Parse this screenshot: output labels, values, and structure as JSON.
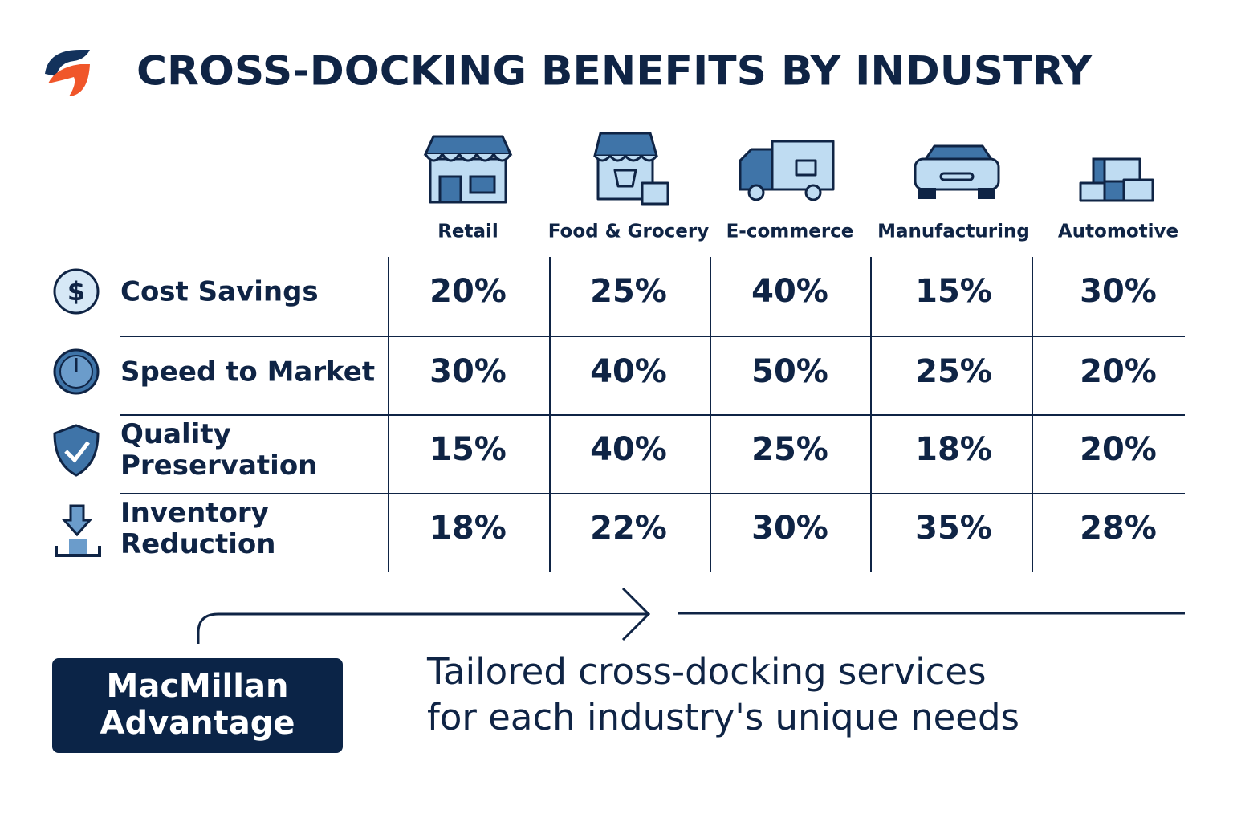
{
  "header": {
    "title": "CROSS-DOCKING BENEFITS BY INDUSTRY"
  },
  "table": {
    "columns": [
      "Retail",
      "Food & Grocery",
      "E-commerce",
      "Manufacturing",
      "Automotive"
    ],
    "rows": [
      {
        "label": [
          "Cost Savings"
        ],
        "cells": [
          "20%",
          "25%",
          "40%",
          "15%",
          "30%"
        ]
      },
      {
        "label": [
          "Speed to Market"
        ],
        "cells": [
          "30%",
          "40%",
          "50%",
          "25%",
          "20%"
        ]
      },
      {
        "label": [
          "Quality",
          "Preservation"
        ],
        "cells": [
          "15%",
          "40%",
          "25%",
          "18%",
          "20%"
        ]
      },
      {
        "label": [
          "Inventory",
          "Reduction"
        ],
        "cells": [
          "18%",
          "22%",
          "30%",
          "35%",
          "28%"
        ]
      }
    ]
  },
  "callout": {
    "badge": [
      "MacMillan",
      "Advantage"
    ],
    "text": [
      "Tailored cross-docking services",
      "for each industry's unique needs"
    ]
  }
}
